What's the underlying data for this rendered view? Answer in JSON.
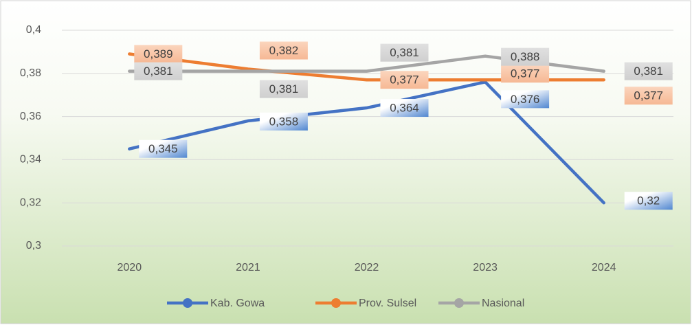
{
  "chart_data": {
    "type": "line",
    "categories": [
      "2020",
      "2021",
      "2022",
      "2023",
      "2024"
    ],
    "series": [
      {
        "name": "Kab. Gowa",
        "color": "#4472c4",
        "values": [
          0.345,
          0.358,
          0.364,
          0.376,
          0.32
        ],
        "value_labels": [
          "0,345",
          "0,358",
          "0,364",
          "0,376",
          "0,32"
        ]
      },
      {
        "name": "Prov. Sulsel",
        "color": "#ed7d31",
        "values": [
          0.389,
          0.382,
          0.377,
          0.377,
          0.377
        ],
        "value_labels": [
          "0,389",
          "0,382",
          "0,377",
          "0,377",
          "0,377"
        ]
      },
      {
        "name": "Nasional",
        "color": "#a5a5a5",
        "values": [
          0.381,
          0.381,
          0.381,
          0.388,
          0.381
        ],
        "value_labels": [
          "0,381",
          "0,381",
          "0,381",
          "0,388",
          "0,381"
        ]
      }
    ],
    "ylim": [
      0.3,
      0.4
    ],
    "yticks": [
      {
        "value": 0.3,
        "label": "0,3"
      },
      {
        "value": 0.32,
        "label": "0,32"
      },
      {
        "value": 0.34,
        "label": "0,34"
      },
      {
        "value": 0.36,
        "label": "0,36"
      },
      {
        "value": 0.38,
        "label": "0,38"
      },
      {
        "value": 0.4,
        "label": "0,4"
      }
    ],
    "grid": true,
    "legend": "bottom"
  }
}
